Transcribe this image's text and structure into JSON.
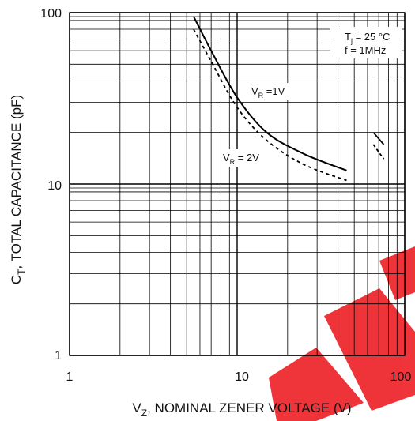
{
  "chart_data": {
    "type": "line",
    "title": "",
    "xlabel": "V",
    "xlabel_sub": "Z",
    "xlabel_rest": ", NOMINAL ZENER VOLTAGE (V)",
    "ylabel": "C",
    "ylabel_sub": "T",
    "ylabel_rest": ", TOTAL CAPACITANCE (pF)",
    "x_scale": "log",
    "y_scale": "log",
    "xlim": [
      1,
      100
    ],
    "ylim": [
      1,
      100
    ],
    "x_tick_labels": [
      "1",
      "10",
      "100"
    ],
    "y_tick_labels": [
      "100",
      "10",
      "1"
    ],
    "grid": true,
    "series": [
      {
        "name": "V_R =1V",
        "style": "solid",
        "points": [
          [
            5.5,
            95
          ],
          [
            7,
            60
          ],
          [
            10,
            32
          ],
          [
            15,
            20
          ],
          [
            25,
            15
          ],
          [
            45,
            12
          ]
        ]
      },
      {
        "name": "V_R = 2V",
        "style": "dashed",
        "points": [
          [
            5.5,
            80
          ],
          [
            7,
            52
          ],
          [
            10,
            28
          ],
          [
            15,
            18
          ],
          [
            25,
            13
          ],
          [
            45,
            10.5
          ]
        ]
      }
    ],
    "break_marks": [
      {
        "style": "solid",
        "points": [
          [
            65,
            20
          ],
          [
            75,
            17
          ]
        ]
      },
      {
        "style": "dashed",
        "points": [
          [
            65,
            17
          ],
          [
            75,
            14
          ]
        ]
      }
    ],
    "annotations": {
      "tj_label": "T",
      "tj_sub": "j",
      "tj_rest": " = 25 °C",
      "freq": "f = 1MHz",
      "vr1_main": "V",
      "vr1_sub": "R",
      "vr1_rest": " =1V",
      "vr2_main": "V",
      "vr2_sub": "R",
      "vr2_rest": " = 2V"
    },
    "colors": {
      "line": "#000000",
      "grid": "#000000",
      "watermark": "#ee2a2f"
    }
  }
}
